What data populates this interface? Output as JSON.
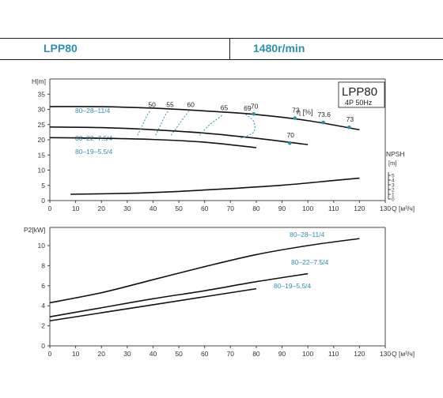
{
  "header": {
    "model": "LPP80",
    "speed": "1480r/min"
  },
  "chart_data": [
    {
      "type": "line",
      "title": "LPP80",
      "subtitle": "4P  50Hz",
      "ylabel": "H[m]",
      "xlabel": "Q [м³/ч]",
      "efficiency_label": "η [%]",
      "npsh_label": "NPSH",
      "npsh_unit": "[m]",
      "xlim": [
        0,
        130
      ],
      "ylim": [
        0,
        40
      ],
      "x_ticks": [
        "0",
        "10",
        "20",
        "30",
        "40",
        "50",
        "60",
        "70",
        "80",
        "90",
        "100",
        "110",
        "120",
        "130"
      ],
      "y_ticks": [
        "0",
        "5",
        "10",
        "15",
        "20",
        "25",
        "30",
        "35"
      ],
      "npsh_ticks": [
        "0",
        "1",
        "2",
        "3",
        "4",
        "5"
      ],
      "series": [
        {
          "name": "80–28–11/4",
          "x": [
            0,
            20,
            40,
            60,
            80,
            100,
            120
          ],
          "y": [
            30.9,
            30.9,
            30.4,
            29.5,
            28.3,
            26.3,
            23.3
          ]
        },
        {
          "name": "80–22–7.5/4",
          "x": [
            0,
            20,
            40,
            60,
            80,
            100
          ],
          "y": [
            24.2,
            24.0,
            23.3,
            22.2,
            20.5,
            18.4
          ]
        },
        {
          "name": "80–19–5.5/4",
          "x": [
            0,
            20,
            40,
            60,
            80
          ],
          "y": [
            20.7,
            20.5,
            20.1,
            19.2,
            17.4
          ]
        },
        {
          "name": "NPSH",
          "x": [
            8,
            30,
            50,
            70,
            90,
            110,
            120
          ],
          "y": [
            1.0,
            1.2,
            1.6,
            2.2,
            2.9,
            3.9,
            4.4
          ]
        }
      ],
      "efficiency_curves": [
        {
          "label": "50",
          "points": [
            [
              34,
              21.5
            ],
            [
              36,
              25
            ],
            [
              38,
              28.5
            ],
            [
              39,
              29.5
            ]
          ]
        },
        {
          "label": "55",
          "points": [
            [
              41,
              21.5
            ],
            [
              43,
              25
            ],
            [
              45,
              28.5
            ],
            [
              46,
              29.5
            ]
          ]
        },
        {
          "label": "60",
          "points": [
            [
              47,
              21.5
            ],
            [
              50,
              25
            ],
            [
              53,
              28.5
            ],
            [
              54,
              29.5
            ]
          ]
        },
        {
          "label": "65",
          "points": [
            [
              58,
              21.5
            ],
            [
              62,
              25
            ],
            [
              66,
              27.5
            ],
            [
              67,
              28.5
            ]
          ]
        },
        {
          "label": "69",
          "points": [
            [
              74,
              20.5
            ],
            [
              79,
              22.5
            ],
            [
              79,
              26
            ],
            [
              76,
              28.3
            ]
          ]
        }
      ],
      "efficiency_markers": [
        {
          "label": "70",
          "x": 79,
          "y": 28.5
        },
        {
          "label": "73",
          "x": 95,
          "y": 27.1
        },
        {
          "label": "73.6",
          "x": 106,
          "y": 25.7
        },
        {
          "label": "73",
          "x": 116,
          "y": 24.1
        },
        {
          "label": "70",
          "x": 93,
          "y": 18.9
        }
      ]
    },
    {
      "type": "line",
      "ylabel": "P2[kW]",
      "xlabel": "Q [м³/ч]",
      "xlim": [
        0,
        130
      ],
      "ylim": [
        0,
        12
      ],
      "x_ticks": [
        "0",
        "10",
        "20",
        "30",
        "40",
        "50",
        "60",
        "70",
        "80",
        "90",
        "100",
        "110",
        "120",
        "130"
      ],
      "y_ticks": [
        "0",
        "2",
        "4",
        "6",
        "8",
        "10"
      ],
      "series": [
        {
          "name": "80–28–11/4",
          "x": [
            0,
            20,
            40,
            60,
            80,
            100,
            120
          ],
          "y": [
            4.3,
            5.3,
            6.6,
            7.9,
            9.1,
            10.0,
            10.7
          ]
        },
        {
          "name": "80–22–7.5/4",
          "x": [
            0,
            20,
            40,
            60,
            80,
            100
          ],
          "y": [
            2.9,
            3.8,
            4.7,
            5.5,
            6.4,
            7.2
          ]
        },
        {
          "name": "80–19–5.5/4",
          "x": [
            0,
            20,
            40,
            60,
            80
          ],
          "y": [
            2.5,
            3.3,
            4.1,
            4.9,
            5.7
          ]
        }
      ]
    }
  ]
}
